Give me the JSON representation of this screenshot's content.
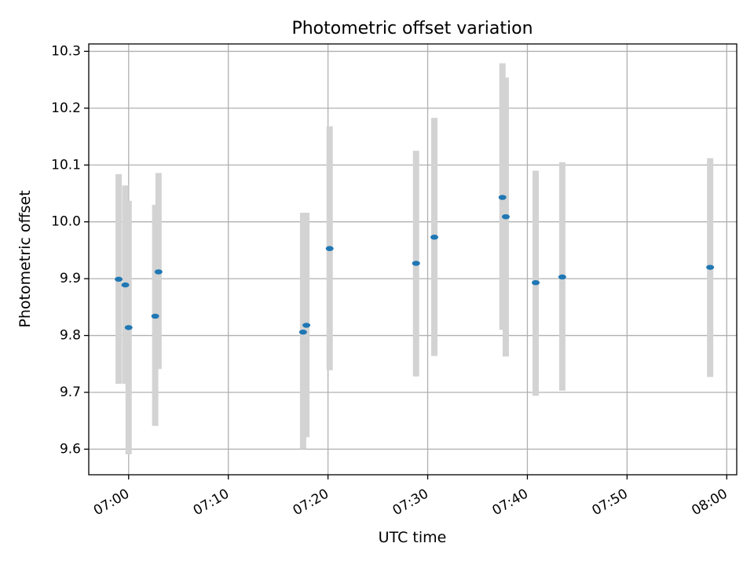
{
  "chart_data": {
    "type": "scatter",
    "title": "Photometric offset variation",
    "xlabel": "UTC time",
    "ylabel": "Photometric offset",
    "xlim": [
      "06:56",
      "08:01"
    ],
    "ylim": [
      9.555,
      10.313
    ],
    "x_ticks": [
      "07:00",
      "07:10",
      "07:20",
      "07:30",
      "07:40",
      "07:50",
      "08:00"
    ],
    "y_ticks": [
      9.6,
      9.7,
      9.8,
      9.9,
      10.0,
      10.1,
      10.2,
      10.3
    ],
    "grid": true,
    "marker_color": "#1f77b4",
    "errorbar_color": "#d3d3d3",
    "series": [
      {
        "points": [
          {
            "x": "06:59:00",
            "y": 9.899,
            "err_low": 9.715,
            "err_high": 10.084
          },
          {
            "x": "06:59:40",
            "y": 9.889,
            "err_low": 9.715,
            "err_high": 10.064
          },
          {
            "x": "07:00:00",
            "y": 9.814,
            "err_low": 9.591,
            "err_high": 10.037
          },
          {
            "x": "07:02:40",
            "y": 9.834,
            "err_low": 9.641,
            "err_high": 10.03
          },
          {
            "x": "07:03:00",
            "y": 9.912,
            "err_low": 9.741,
            "err_high": 10.086
          },
          {
            "x": "07:17:30",
            "y": 9.806,
            "err_low": 9.6,
            "err_high": 10.016
          },
          {
            "x": "07:17:50",
            "y": 9.818,
            "err_low": 9.621,
            "err_high": 10.016
          },
          {
            "x": "07:20:10",
            "y": 9.953,
            "err_low": 9.739,
            "err_high": 10.168
          },
          {
            "x": "07:28:50",
            "y": 9.927,
            "err_low": 9.728,
            "err_high": 10.125
          },
          {
            "x": "07:30:40",
            "y": 9.973,
            "err_low": 9.764,
            "err_high": 10.183
          },
          {
            "x": "07:37:30",
            "y": 10.043,
            "err_low": 9.81,
            "err_high": 10.279
          },
          {
            "x": "07:37:50",
            "y": 10.009,
            "err_low": 9.763,
            "err_high": 10.254
          },
          {
            "x": "07:40:50",
            "y": 9.893,
            "err_low": 9.694,
            "err_high": 10.09
          },
          {
            "x": "07:43:30",
            "y": 9.903,
            "err_low": 9.703,
            "err_high": 10.105
          },
          {
            "x": "07:58:20",
            "y": 9.92,
            "err_low": 9.727,
            "err_high": 10.112
          }
        ]
      }
    ]
  }
}
